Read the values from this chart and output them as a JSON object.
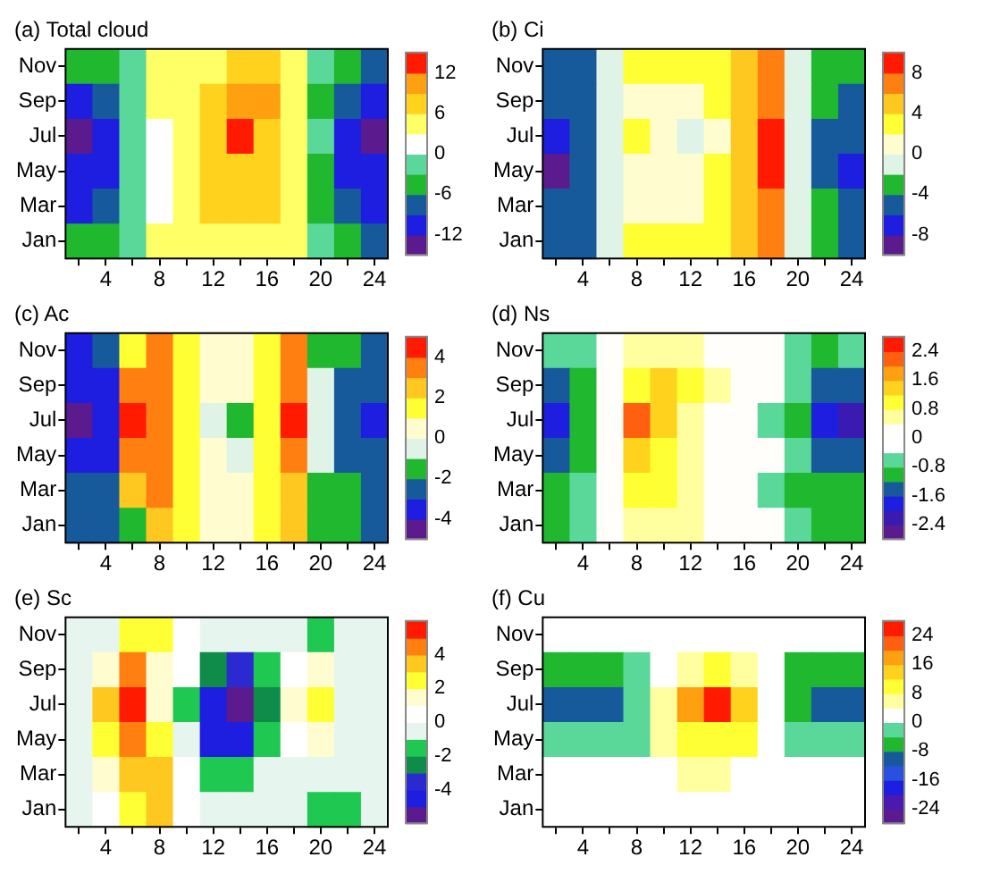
{
  "chart_data": [
    {
      "type": "heatmap",
      "title": "(a) Total cloud",
      "categories": [
        null,
        "4",
        null,
        "8",
        null,
        "12",
        null,
        "16",
        null,
        "20",
        null,
        "24"
      ],
      "y_categories": [
        "Nov",
        "Sep",
        "Jul",
        "May",
        "Mar",
        "Jan"
      ],
      "clim": [
        -15,
        15
      ],
      "cticks": [
        -12,
        -6,
        0,
        6,
        12
      ],
      "colors": [
        "#5b1a8e",
        "#1e1ee0",
        "#175a9c",
        "#1fb82e",
        "#5ad89a",
        "#ffffff",
        "#ffff66",
        "#ffd21e",
        "#ffa010",
        "#ff1a00"
      ],
      "cells": [
        [
          -4.5,
          -4.5,
          -1.5,
          4.5,
          4.5,
          4.5,
          7.5,
          7.5,
          4.5,
          -1.5,
          -4.5,
          -7.5
        ],
        [
          -10.5,
          -7.5,
          -1.5,
          4.5,
          4.5,
          7.5,
          10.5,
          10.5,
          4.5,
          -4.5,
          -7.5,
          -10.5
        ],
        [
          -13.5,
          -10.5,
          -1.5,
          1.5,
          4.5,
          7.5,
          13.5,
          7.5,
          4.5,
          -1.5,
          -10.5,
          -13.5
        ],
        [
          -10.5,
          -10.5,
          -1.5,
          1.5,
          4.5,
          7.5,
          7.5,
          7.5,
          4.5,
          -4.5,
          -10.5,
          -10.5
        ],
        [
          -10.5,
          -7.5,
          -1.5,
          1.5,
          4.5,
          7.5,
          7.5,
          7.5,
          4.5,
          -4.5,
          -7.5,
          -10.5
        ],
        [
          -4.5,
          -4.5,
          -1.5,
          4.5,
          4.5,
          4.5,
          4.5,
          4.5,
          4.5,
          -1.5,
          -4.5,
          -7.5
        ]
      ]
    },
    {
      "type": "heatmap",
      "title": "(b) Ci",
      "categories": [
        null,
        "4",
        null,
        "8",
        null,
        "12",
        null,
        "16",
        null,
        "20",
        null,
        "24"
      ],
      "y_categories": [
        "Nov",
        "Sep",
        "Jul",
        "May",
        "Mar",
        "Jan"
      ],
      "clim": [
        -10,
        10
      ],
      "cticks": [
        -8,
        -4,
        0,
        4,
        8
      ],
      "colors": [
        "#5b1a8e",
        "#1e1ee0",
        "#175a9c",
        "#1fb82e",
        "#dff4e6",
        "#fffcd0",
        "#ffff33",
        "#ffc820",
        "#ff8010",
        "#ff1a00"
      ],
      "cells": [
        [
          -5,
          -5,
          -1,
          3,
          3,
          3,
          3,
          5,
          7,
          -1,
          -3,
          -3
        ],
        [
          -5,
          -5,
          -1,
          1,
          1,
          1,
          3,
          5,
          7,
          -1,
          -3,
          -5
        ],
        [
          -7,
          -5,
          -1,
          3,
          1,
          -1,
          1,
          5,
          9,
          -1,
          -5,
          -5
        ],
        [
          -9,
          -5,
          -1,
          1,
          1,
          1,
          3,
          5,
          9,
          -1,
          -5,
          -7
        ],
        [
          -5,
          -5,
          -1,
          1,
          1,
          1,
          3,
          5,
          7,
          -1,
          -3,
          -5
        ],
        [
          -5,
          -5,
          -1,
          3,
          3,
          3,
          3,
          5,
          7,
          -1,
          -3,
          -5
        ]
      ]
    },
    {
      "type": "heatmap",
      "title": "(c) Ac",
      "categories": [
        null,
        "4",
        null,
        "8",
        null,
        "12",
        null,
        "16",
        null,
        "20",
        null,
        "24"
      ],
      "y_categories": [
        "Nov",
        "Sep",
        "Jul",
        "May",
        "Mar",
        "Jan"
      ],
      "clim": [
        -5,
        5
      ],
      "cticks": [
        -4,
        -2,
        0,
        2,
        4
      ],
      "colors": [
        "#5b1a8e",
        "#1e1ee0",
        "#175a9c",
        "#1fb82e",
        "#dff4e6",
        "#fffcd0",
        "#ffff33",
        "#ffc820",
        "#ff8010",
        "#ff1a00"
      ],
      "cells": [
        [
          -3.5,
          -2.5,
          1.5,
          3.5,
          1.5,
          0.5,
          0.5,
          1.5,
          3.5,
          -1.5,
          -1.5,
          -2.5
        ],
        [
          -3.5,
          -3.5,
          3.5,
          3.5,
          1.5,
          0.5,
          0.5,
          1.5,
          3.5,
          -0.5,
          -2.5,
          -2.5
        ],
        [
          -4.5,
          -3.5,
          4.5,
          3.5,
          1.5,
          -0.5,
          -1.5,
          1.5,
          4.5,
          -0.5,
          -2.5,
          -3.5
        ],
        [
          -3.5,
          -3.5,
          3.5,
          3.5,
          1.5,
          0.5,
          -0.5,
          1.5,
          3.5,
          -0.5,
          -2.5,
          -2.5
        ],
        [
          -2.5,
          -2.5,
          2.5,
          3.5,
          1.5,
          0.5,
          0.5,
          1.5,
          2.5,
          -1.5,
          -1.5,
          -2.5
        ],
        [
          -2.5,
          -2.5,
          -1.5,
          2.5,
          1.5,
          0.5,
          0.5,
          1.5,
          2.5,
          -1.5,
          -1.5,
          -2.5
        ]
      ]
    },
    {
      "type": "heatmap",
      "title": "(d) Ns",
      "categories": [
        null,
        "4",
        null,
        "8",
        null,
        "12",
        null,
        "16",
        null,
        "20",
        null,
        "24"
      ],
      "y_categories": [
        "Nov",
        "Sep",
        "Jul",
        "May",
        "Mar",
        "Jan"
      ],
      "clim": [
        -2.8,
        2.8
      ],
      "cticks": [
        -2.4,
        -1.6,
        -0.8,
        0,
        0.8,
        1.6,
        2.4
      ],
      "colors": [
        "#5b1a8e",
        "#3a1ab0",
        "#1e1ee0",
        "#175a9c",
        "#1fb82e",
        "#5ad89a",
        "#ffffff",
        "#fffefa",
        "#ffffa0",
        "#ffff33",
        "#ffd21e",
        "#ffa010",
        "#ff6010",
        "#ff1a00"
      ],
      "cells": [
        [
          -0.6,
          -0.6,
          0.2,
          0.6,
          0.6,
          0.6,
          0.2,
          0.2,
          0.2,
          -0.6,
          -1.0,
          -0.6
        ],
        [
          -1.4,
          -1.0,
          0.2,
          1.0,
          1.4,
          1.0,
          0.6,
          0.2,
          0.2,
          -0.6,
          -1.4,
          -1.4
        ],
        [
          -1.8,
          -1.0,
          0.2,
          2.2,
          1.4,
          0.6,
          0.2,
          0.2,
          -0.6,
          -1.0,
          -1.8,
          -2.2
        ],
        [
          -1.4,
          -1.0,
          0.2,
          1.4,
          1.0,
          0.6,
          0.2,
          0.2,
          0.2,
          -0.6,
          -1.4,
          -1.4
        ],
        [
          -1.0,
          -0.6,
          0.2,
          1.0,
          1.0,
          0.6,
          0.2,
          0.2,
          -0.6,
          -1.0,
          -1.0,
          -1.0
        ],
        [
          -1.0,
          -0.6,
          0.2,
          0.6,
          0.6,
          0.6,
          0.2,
          0.2,
          0.2,
          -0.6,
          -1.0,
          -1.0
        ]
      ]
    },
    {
      "type": "heatmap",
      "title": "(e) Sc",
      "categories": [
        null,
        "4",
        null,
        "8",
        null,
        "12",
        null,
        "16",
        null,
        "20",
        null,
        "24"
      ],
      "y_categories": [
        "Nov",
        "Sep",
        "Jul",
        "May",
        "Mar",
        "Jan"
      ],
      "clim": [
        -6,
        6
      ],
      "cticks": [
        -4,
        -2,
        0,
        2,
        4
      ],
      "colors": [
        "#5b1a8e",
        "#1e1ee0",
        "#2a2ad0",
        "#108c4a",
        "#1fc850",
        "#e6f6ee",
        "#ffffff",
        "#fffcd0",
        "#ffff33",
        "#ffc820",
        "#ff8010",
        "#ff1a00"
      ],
      "cells": [
        [
          -0.5,
          -0.5,
          2.5,
          2.5,
          0.5,
          -0.5,
          -0.5,
          -0.5,
          -0.5,
          -1.5,
          -0.5,
          -0.5
        ],
        [
          -0.5,
          1.5,
          4.5,
          1.5,
          0.5,
          -2.5,
          -3.5,
          -1.5,
          0.5,
          1.5,
          -0.5,
          -0.5
        ],
        [
          -0.5,
          3.5,
          5.5,
          1.5,
          -1.5,
          -4.5,
          -5.5,
          -2.5,
          1.5,
          2.5,
          -0.5,
          -0.5
        ],
        [
          -0.5,
          2.5,
          4.5,
          2.5,
          -0.5,
          -4.5,
          -4.5,
          -1.5,
          0.5,
          1.5,
          -0.5,
          -0.5
        ],
        [
          -0.5,
          1.5,
          3.5,
          3.5,
          0.5,
          -1.5,
          -1.5,
          -0.5,
          -0.5,
          -0.5,
          -0.5,
          -0.5
        ],
        [
          -0.5,
          0.5,
          2.5,
          3.5,
          0.5,
          -0.5,
          -0.5,
          -0.5,
          -0.5,
          -1.5,
          -1.5,
          -0.5
        ]
      ]
    },
    {
      "type": "heatmap",
      "title": "(f) Cu",
      "categories": [
        null,
        "4",
        null,
        "8",
        null,
        "12",
        null,
        "16",
        null,
        "20",
        null,
        "24"
      ],
      "y_categories": [
        "Nov",
        "Sep",
        "Jul",
        "May",
        "Mar",
        "Jan"
      ],
      "clim": [
        -28,
        28
      ],
      "cticks": [
        -24,
        -16,
        -8,
        0,
        8,
        16,
        24
      ],
      "colors": [
        "#5b1a8e",
        "#4a1ab0",
        "#1e1ee0",
        "#2a50e0",
        "#175a9c",
        "#1fb82e",
        "#5ad89a",
        "#ffffff",
        "#ffffa0",
        "#ffff33",
        "#ffd21e",
        "#ffa010",
        "#ff6010",
        "#ff1a00"
      ],
      "cells": [
        [
          2,
          2,
          2,
          2,
          2,
          2,
          2,
          2,
          2,
          2,
          2,
          2
        ],
        [
          -6,
          -6,
          -6,
          -2,
          2,
          6,
          10,
          6,
          2,
          -6,
          -6,
          -6
        ],
        [
          -10,
          -10,
          -10,
          -2,
          6,
          18,
          26,
          14,
          2,
          -6,
          -10,
          -10
        ],
        [
          -2,
          -2,
          -2,
          -2,
          6,
          10,
          10,
          10,
          2,
          -2,
          -2,
          -2
        ],
        [
          2,
          2,
          2,
          2,
          2,
          6,
          6,
          2,
          2,
          2,
          2,
          2
        ],
        [
          2,
          2,
          2,
          2,
          2,
          2,
          2,
          2,
          2,
          2,
          2,
          2
        ]
      ]
    }
  ]
}
